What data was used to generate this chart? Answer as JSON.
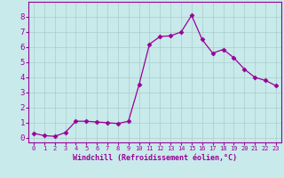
{
  "x": [
    0,
    1,
    2,
    3,
    4,
    5,
    6,
    7,
    8,
    9,
    10,
    11,
    12,
    13,
    14,
    15,
    16,
    17,
    18,
    19,
    20,
    21,
    22,
    23
  ],
  "y": [
    0.3,
    0.15,
    0.1,
    0.35,
    1.1,
    1.1,
    1.05,
    1.0,
    0.95,
    1.1,
    3.5,
    6.2,
    6.7,
    6.75,
    7.0,
    8.1,
    6.5,
    5.6,
    5.85,
    5.3,
    4.55,
    4.0,
    3.8,
    3.45
  ],
  "line_color": "#990099",
  "marker": "D",
  "marker_size": 2.5,
  "bg_color": "#c8eaea",
  "grid_color": "#aacccc",
  "xlabel": "Windchill (Refroidissement éolien,°C)",
  "xlabel_color": "#990099",
  "xlim": [
    -0.5,
    23.5
  ],
  "ylim": [
    -0.3,
    9.0
  ],
  "xticks": [
    0,
    1,
    2,
    3,
    4,
    5,
    6,
    7,
    8,
    9,
    10,
    11,
    12,
    13,
    14,
    15,
    16,
    17,
    18,
    19,
    20,
    21,
    22,
    23
  ],
  "yticks": [
    0,
    1,
    2,
    3,
    4,
    5,
    6,
    7,
    8
  ],
  "tick_label_color": "#990099",
  "tick_color": "#990099",
  "spine_color": "#990099"
}
